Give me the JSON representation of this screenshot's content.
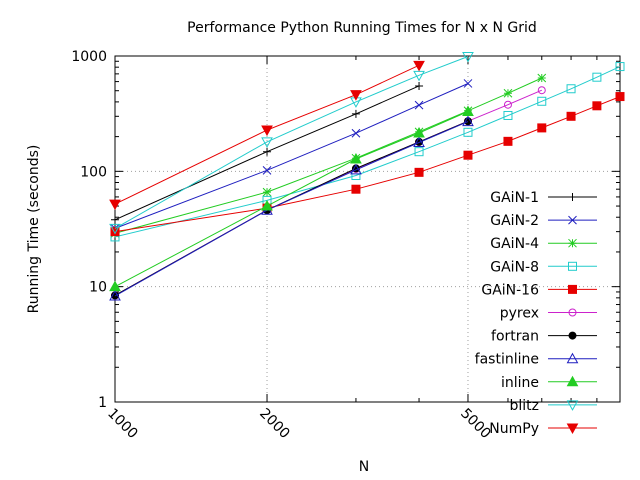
{
  "chart_data": {
    "type": "line",
    "title": "Performance Python Running Times for N x N Grid",
    "xlabel": "N",
    "ylabel": "Running Time (seconds)",
    "xscale": "log",
    "yscale": "log",
    "xlim": [
      1000,
      10000
    ],
    "ylim": [
      1,
      1000
    ],
    "xticks": [
      1000,
      2000,
      5000
    ],
    "yticks": [
      1,
      10,
      100,
      1000
    ],
    "x_tick_labels": [
      "1000",
      "2000",
      "5000"
    ],
    "y_tick_labels": [
      "1",
      "10",
      "100",
      "1000"
    ],
    "grid": true,
    "legend_position": "right",
    "series": [
      {
        "name": "GAiN-1",
        "color": "#000000",
        "marker": "plus",
        "x": [
          1000,
          2000,
          3000,
          4000
        ],
        "y": [
          38,
          148,
          315,
          550
        ]
      },
      {
        "name": "GAiN-2",
        "color": "#1f1fbf",
        "marker": "cross",
        "x": [
          1000,
          2000,
          3000,
          4000,
          5000
        ],
        "y": [
          32,
          102,
          214,
          375,
          578
        ]
      },
      {
        "name": "GAiN-4",
        "color": "#22cc22",
        "marker": "star",
        "x": [
          1000,
          2000,
          3000,
          4000,
          5000,
          6000,
          7000
        ],
        "y": [
          29,
          66,
          130,
          220,
          335,
          475,
          645
        ]
      },
      {
        "name": "GAiN-8",
        "color": "#22cccc",
        "marker": "square-open",
        "x": [
          1000,
          2000,
          3000,
          4000,
          5000,
          6000,
          7000,
          8000,
          9000,
          10000
        ],
        "y": [
          27,
          56,
          92,
          148,
          218,
          305,
          405,
          520,
          655,
          810
        ]
      },
      {
        "name": "GAiN-16",
        "color": "#e60000",
        "marker": "square-filled",
        "x": [
          1000,
          2000,
          3000,
          4000,
          5000,
          6000,
          7000,
          8000,
          9000,
          10000
        ],
        "y": [
          30,
          48,
          70,
          98,
          138,
          182,
          238,
          300,
          370,
          445
        ]
      },
      {
        "name": "pyrex",
        "color": "#cc22cc",
        "marker": "circle-open",
        "x": [
          1000,
          2000,
          3000,
          4000,
          5000,
          6000,
          7000
        ],
        "y": [
          8.4,
          46,
          105,
          180,
          272,
          378,
          505
        ]
      },
      {
        "name": "fortran",
        "color": "#000000",
        "marker": "circle-filled",
        "x": [
          1000,
          2000,
          3000,
          4000,
          5000
        ],
        "y": [
          8.4,
          46,
          106,
          180,
          272
        ]
      },
      {
        "name": "fastinline",
        "color": "#1f1fbf",
        "marker": "triangle-open",
        "x": [
          1000,
          2000,
          3000,
          4000,
          5000
        ],
        "y": [
          8.3,
          46,
          103,
          178,
          270
        ]
      },
      {
        "name": "inline",
        "color": "#22cc22",
        "marker": "triangle-filled",
        "x": [
          1000,
          2000,
          3000,
          4000,
          5000
        ],
        "y": [
          10,
          50,
          128,
          215,
          330
        ]
      },
      {
        "name": "blitz",
        "color": "#22cccc",
        "marker": "triangle-down-open",
        "x": [
          1000,
          2000,
          3000,
          4000,
          5000
        ],
        "y": [
          32,
          180,
          400,
          680,
          990
        ]
      },
      {
        "name": "NumPy",
        "color": "#e60000",
        "marker": "triangle-down-filled",
        "x": [
          1000,
          2000,
          3000,
          4000
        ],
        "y": [
          52,
          228,
          462,
          830
        ]
      }
    ]
  }
}
